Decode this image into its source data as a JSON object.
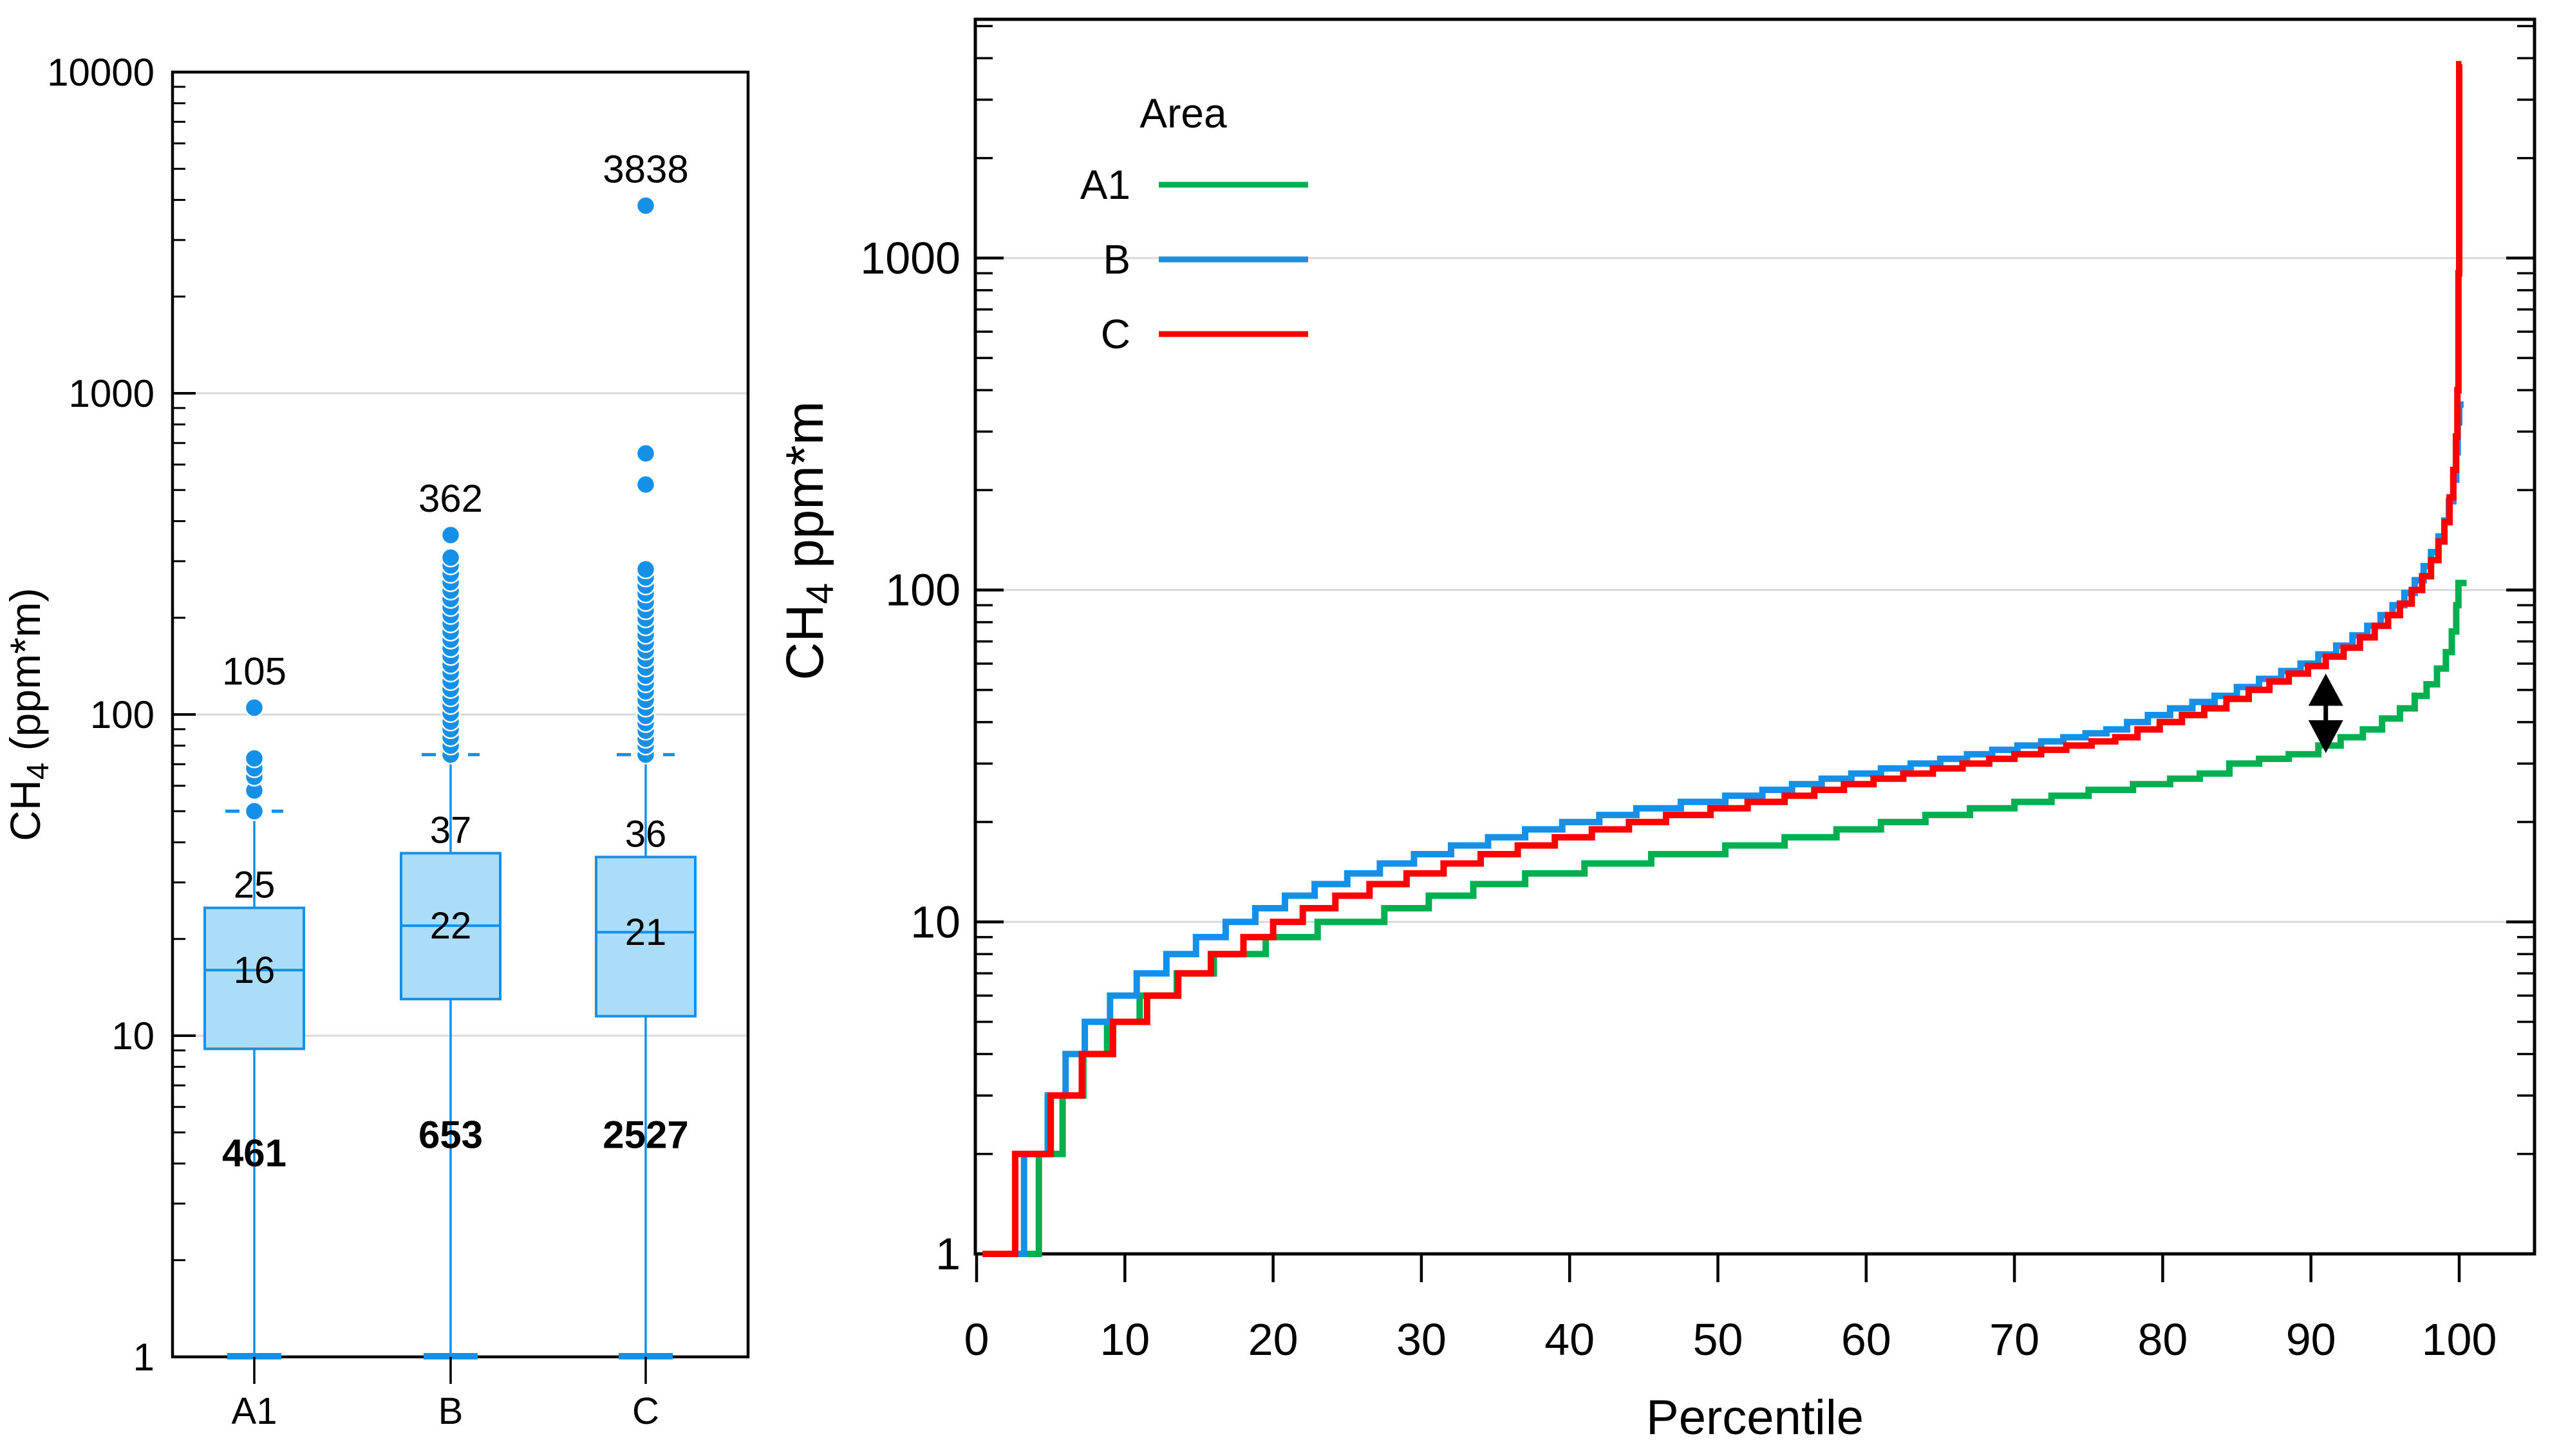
{
  "figure_bg": "#ffffff",
  "colors": {
    "blue": "#1590E8",
    "box_fill": "#ACDDF8",
    "green": "#00B050",
    "red": "#FF0000",
    "grid": "#D9D9D9",
    "axis": "#000000",
    "annotation_arrow": "#000000"
  },
  "chart_data": [
    {
      "type": "box",
      "panel": "left",
      "ylabel": "CH4 (ppm*m)",
      "y_scale": "log",
      "ylim": [
        1,
        10000
      ],
      "yticks": [
        10000,
        1000,
        100,
        10,
        1
      ],
      "grid_values": [
        1000,
        100,
        10
      ],
      "categories": [
        "A1",
        "B",
        "C"
      ],
      "boxes": [
        {
          "category": "A1",
          "q1": 9.1,
          "median": 16,
          "q3": 25,
          "whisker_low": 1,
          "upper_fence": 50,
          "median_label": "16",
          "q3_label": "25",
          "max_label": "105",
          "count_label": "461",
          "count_y_value": 4.3,
          "outliers": [
            50,
            58,
            64,
            68,
            73,
            105
          ]
        },
        {
          "category": "B",
          "q1": 13,
          "median": 22,
          "q3": 37,
          "whisker_low": 1,
          "upper_fence": 75,
          "median_label": "22",
          "q3_label": "37",
          "max_label": "362",
          "count_label": "653",
          "count_y_value": 4.9,
          "outliers": [
            75,
            80,
            85,
            90,
            95,
            101,
            107,
            113,
            120,
            127,
            135,
            143,
            152,
            161,
            171,
            181,
            192,
            204,
            216,
            229,
            243,
            258,
            274,
            291,
            308,
            362
          ]
        },
        {
          "category": "C",
          "q1": 11.5,
          "median": 21,
          "q3": 36,
          "whisker_low": 1,
          "upper_fence": 75,
          "median_label": "21",
          "q3_label": "36",
          "max_label": "3838",
          "count_label": "2527",
          "count_y_value": 4.9,
          "outliers": [
            75,
            80,
            84,
            89,
            94,
            99,
            105,
            111,
            118,
            125,
            132,
            140,
            149,
            158,
            167,
            177,
            188,
            199,
            211,
            224,
            238,
            252,
            267,
            283,
            520,
            650,
            3838
          ]
        }
      ]
    },
    {
      "type": "line",
      "panel": "right",
      "line_style": "step",
      "xlabel": "Percentile",
      "ylabel": "CH4 ppm*m",
      "x_scale": "linear",
      "y_scale": "log",
      "xlim": [
        0,
        105
      ],
      "ylim": [
        1,
        5200
      ],
      "xticks": [
        0,
        10,
        20,
        30,
        40,
        50,
        60,
        70,
        80,
        90,
        100
      ],
      "yticks": [
        1000,
        100,
        10,
        1
      ],
      "grid_values": [
        1000,
        100,
        10
      ],
      "legend_title": "Area",
      "legend_position": "top-left-inside",
      "series": [
        {
          "name": "A1",
          "color": "#00B050",
          "points": [
            [
              0.8,
              1
            ],
            [
              4.2,
              2
            ],
            [
              5.8,
              3
            ],
            [
              7.2,
              4
            ],
            [
              8.8,
              5
            ],
            [
              11,
              6
            ],
            [
              13.5,
              7
            ],
            [
              16,
              8
            ],
            [
              19.5,
              9
            ],
            [
              23,
              10
            ],
            [
              27.5,
              11
            ],
            [
              30.5,
              12
            ],
            [
              33.5,
              13
            ],
            [
              37,
              14
            ],
            [
              41,
              15
            ],
            [
              45.5,
              16
            ],
            [
              50.5,
              17
            ],
            [
              54.5,
              18
            ],
            [
              58,
              19
            ],
            [
              61,
              20
            ],
            [
              64,
              21
            ],
            [
              67,
              22
            ],
            [
              70,
              23
            ],
            [
              72.5,
              24
            ],
            [
              75,
              25
            ],
            [
              78,
              26
            ],
            [
              80.5,
              27
            ],
            [
              82.5,
              28
            ],
            [
              84.5,
              30
            ],
            [
              86.5,
              31
            ],
            [
              88.5,
              32
            ],
            [
              90.5,
              34
            ],
            [
              92,
              36
            ],
            [
              93.5,
              38
            ],
            [
              94.8,
              41
            ],
            [
              96,
              44
            ],
            [
              97,
              48
            ],
            [
              97.8,
              52
            ],
            [
              98.5,
              58
            ],
            [
              99.1,
              65
            ],
            [
              99.5,
              75
            ],
            [
              99.8,
              90
            ],
            [
              99.95,
              105
            ],
            [
              100.5,
              105
            ]
          ]
        },
        {
          "name": "B",
          "color": "#1590E8",
          "points": [
            [
              0.5,
              1
            ],
            [
              3.2,
              2
            ],
            [
              4.8,
              3
            ],
            [
              6,
              4
            ],
            [
              7.3,
              5
            ],
            [
              9,
              6
            ],
            [
              10.8,
              7
            ],
            [
              12.8,
              8
            ],
            [
              14.8,
              9
            ],
            [
              16.8,
              10
            ],
            [
              18.8,
              11
            ],
            [
              20.8,
              12
            ],
            [
              22.8,
              13
            ],
            [
              25,
              14
            ],
            [
              27.2,
              15
            ],
            [
              29.5,
              16
            ],
            [
              32,
              17
            ],
            [
              34.5,
              18
            ],
            [
              37,
              19
            ],
            [
              39.5,
              20
            ],
            [
              42,
              21
            ],
            [
              44.5,
              22
            ],
            [
              47.5,
              23
            ],
            [
              50.5,
              24
            ],
            [
              53,
              25
            ],
            [
              55,
              26
            ],
            [
              57,
              27
            ],
            [
              59,
              28
            ],
            [
              61,
              29
            ],
            [
              63,
              30
            ],
            [
              65,
              31
            ],
            [
              66.8,
              32
            ],
            [
              68.5,
              33
            ],
            [
              70.2,
              34
            ],
            [
              71.8,
              35
            ],
            [
              73.3,
              36
            ],
            [
              74.8,
              37
            ],
            [
              76.2,
              38
            ],
            [
              77.6,
              40
            ],
            [
              79,
              42
            ],
            [
              80.5,
              44
            ],
            [
              82,
              46
            ],
            [
              83.5,
              48
            ],
            [
              85,
              51
            ],
            [
              86.5,
              54
            ],
            [
              88,
              57
            ],
            [
              89.3,
              60
            ],
            [
              90.5,
              64
            ],
            [
              91.7,
              68
            ],
            [
              92.8,
              73
            ],
            [
              93.8,
              78
            ],
            [
              94.7,
              84
            ],
            [
              95.5,
              90
            ],
            [
              96.3,
              98
            ],
            [
              97,
              107
            ],
            [
              97.6,
              118
            ],
            [
              98.1,
              130
            ],
            [
              98.6,
              145
            ],
            [
              99,
              162
            ],
            [
              99.3,
              185
            ],
            [
              99.6,
              215
            ],
            [
              99.8,
              260
            ],
            [
              99.9,
              320
            ],
            [
              100,
              362
            ],
            [
              100.3,
              362
            ]
          ]
        },
        {
          "name": "C",
          "color": "#FF0000",
          "points": [
            [
              0.4,
              1
            ],
            [
              2.6,
              2
            ],
            [
              5,
              3
            ],
            [
              7.1,
              4
            ],
            [
              9.2,
              5
            ],
            [
              11.5,
              6
            ],
            [
              13.6,
              7
            ],
            [
              15.8,
              8
            ],
            [
              18,
              9
            ],
            [
              20,
              10
            ],
            [
              22,
              11
            ],
            [
              24.2,
              12
            ],
            [
              26.5,
              13
            ],
            [
              29,
              14
            ],
            [
              31.5,
              15
            ],
            [
              34,
              16
            ],
            [
              36.5,
              17
            ],
            [
              39,
              18
            ],
            [
              41.5,
              19
            ],
            [
              44,
              20
            ],
            [
              46.5,
              21
            ],
            [
              49.5,
              22
            ],
            [
              52,
              23
            ],
            [
              54.5,
              24
            ],
            [
              56.5,
              25
            ],
            [
              58.5,
              26
            ],
            [
              60.5,
              27
            ],
            [
              62.5,
              28
            ],
            [
              64.5,
              29
            ],
            [
              66.5,
              30
            ],
            [
              68.3,
              31
            ],
            [
              70,
              32
            ],
            [
              71.8,
              33
            ],
            [
              73.5,
              34
            ],
            [
              75.2,
              35
            ],
            [
              76.8,
              36
            ],
            [
              78.3,
              38
            ],
            [
              79.8,
              40
            ],
            [
              81.3,
              42
            ],
            [
              82.8,
              44
            ],
            [
              84.3,
              47
            ],
            [
              85.8,
              50
            ],
            [
              87.2,
              53
            ],
            [
              88.5,
              56
            ],
            [
              89.8,
              59
            ],
            [
              91,
              63
            ],
            [
              92.2,
              67
            ],
            [
              93.3,
              72
            ],
            [
              94.3,
              78
            ],
            [
              95.2,
              84
            ],
            [
              96,
              91
            ],
            [
              96.8,
              100
            ],
            [
              97.5,
              110
            ],
            [
              98.1,
              123
            ],
            [
              98.6,
              140
            ],
            [
              99,
              160
            ],
            [
              99.35,
              190
            ],
            [
              99.6,
              230
            ],
            [
              99.78,
              290
            ],
            [
              99.88,
              400
            ],
            [
              99.95,
              900
            ],
            [
              100,
              3838
            ],
            [
              100.15,
              3838
            ]
          ]
        }
      ],
      "annotation": {
        "type": "double-headed-arrow",
        "x_percentile": 91,
        "value_from": 33,
        "value_to": 55
      }
    }
  ]
}
